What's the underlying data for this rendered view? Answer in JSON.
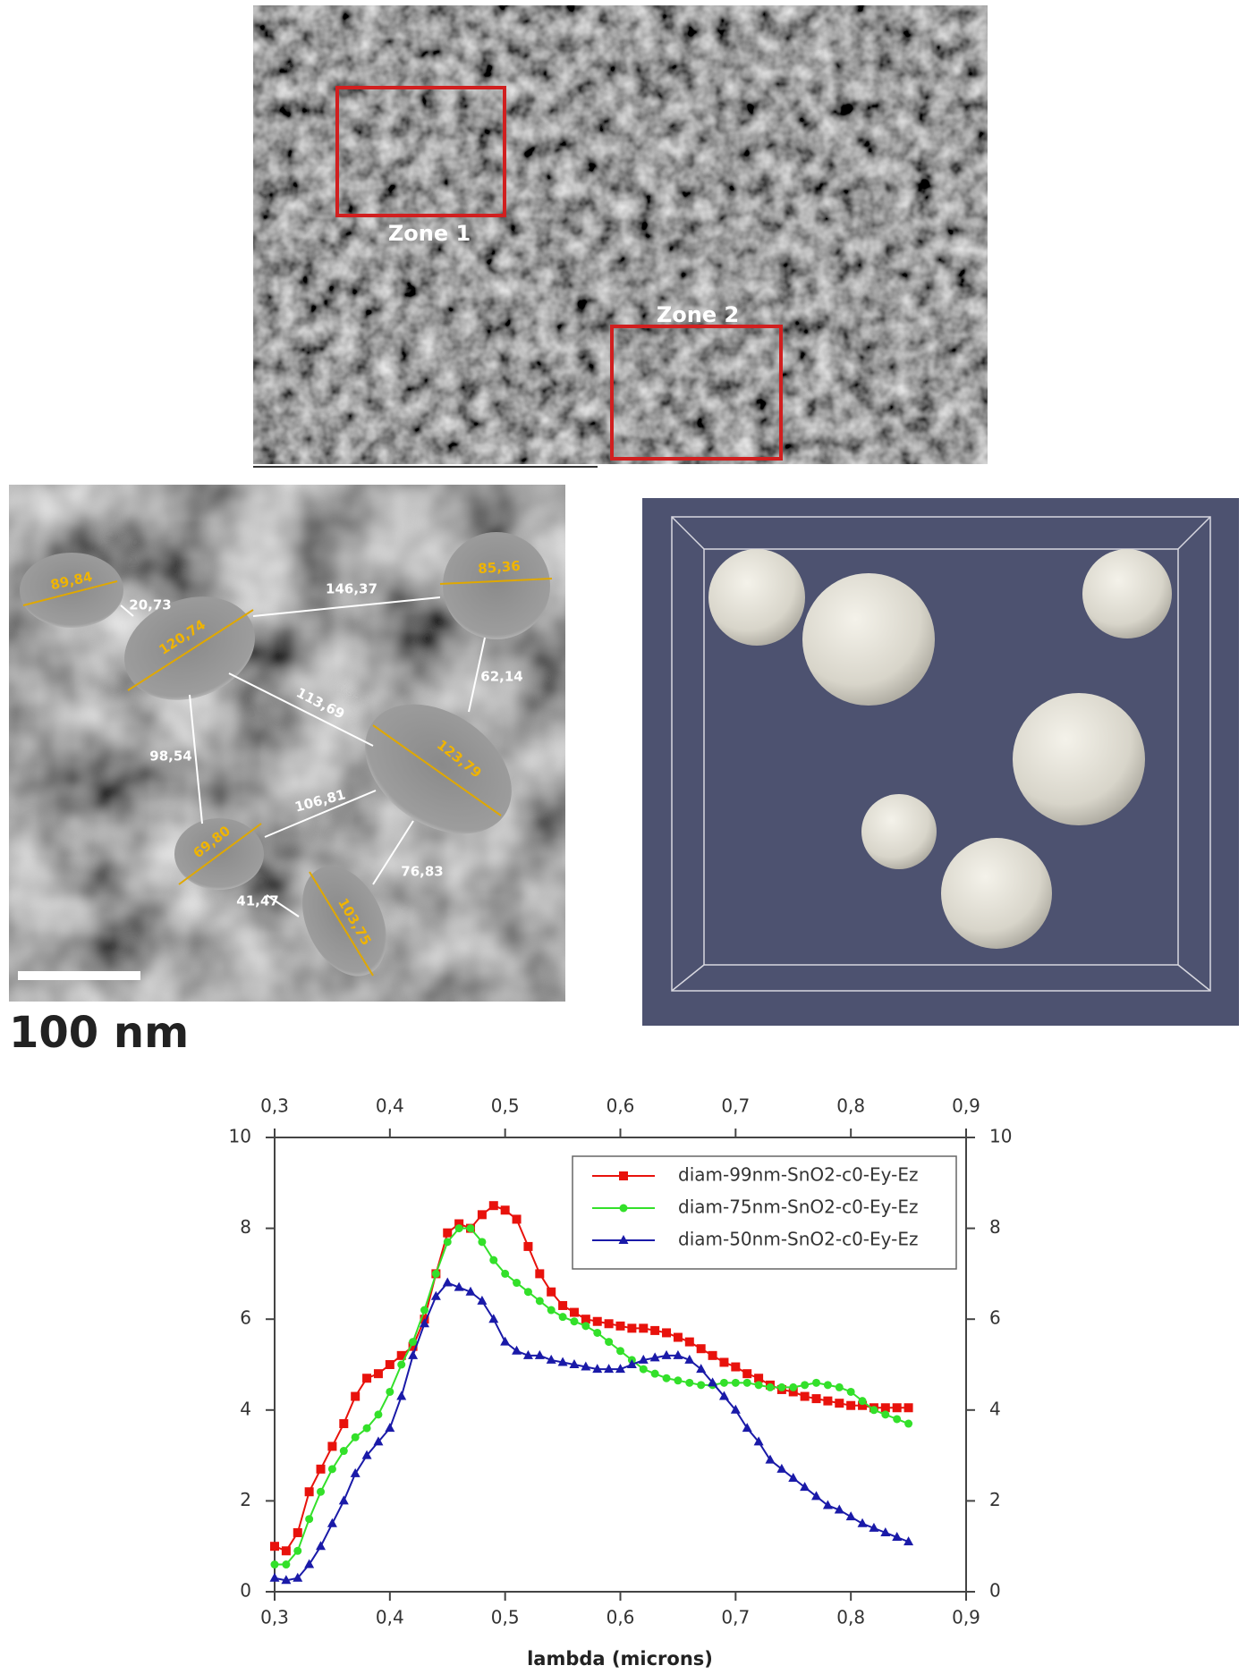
{
  "figure": {
    "zones": [
      "Zone 1",
      "Zone 2"
    ],
    "scale_bar": "100 nm",
    "diameters": [
      "89,84",
      "120,74",
      "85,36",
      "123,79",
      "69,80",
      "103,75"
    ],
    "distances": [
      "20,73",
      "146,37",
      "62,14",
      "113,69",
      "98,54",
      "106,81",
      "76,83",
      "41,47"
    ]
  },
  "chart_data": {
    "type": "line",
    "xlabel": "lambda (microns)",
    "x": [
      0.3,
      0.31,
      0.32,
      0.33,
      0.34,
      0.35,
      0.36,
      0.37,
      0.38,
      0.39,
      0.4,
      0.41,
      0.42,
      0.43,
      0.44,
      0.45,
      0.46,
      0.47,
      0.48,
      0.49,
      0.5,
      0.51,
      0.52,
      0.53,
      0.54,
      0.55,
      0.56,
      0.57,
      0.58,
      0.59,
      0.6,
      0.61,
      0.62,
      0.63,
      0.64,
      0.65,
      0.66,
      0.67,
      0.68,
      0.69,
      0.7,
      0.71,
      0.72,
      0.73,
      0.74,
      0.75,
      0.76,
      0.77,
      0.78,
      0.79,
      0.8,
      0.81,
      0.82,
      0.83,
      0.84,
      0.85
    ],
    "series": [
      {
        "name": "diam-99nm-SnO2-c0-Ey-Ez",
        "color": "#e8120c",
        "marker": "square",
        "values": [
          1.0,
          0.9,
          1.3,
          2.2,
          2.7,
          3.2,
          3.7,
          4.3,
          4.7,
          4.8,
          5.0,
          5.2,
          5.4,
          6.0,
          7.0,
          7.9,
          8.1,
          8.0,
          8.3,
          8.5,
          8.4,
          8.2,
          7.6,
          7.0,
          6.6,
          6.3,
          6.15,
          6.0,
          5.95,
          5.9,
          5.85,
          5.8,
          5.8,
          5.75,
          5.7,
          5.6,
          5.5,
          5.35,
          5.2,
          5.05,
          4.95,
          4.8,
          4.7,
          4.55,
          4.45,
          4.4,
          4.3,
          4.25,
          4.2,
          4.15,
          4.1,
          4.1,
          4.05,
          4.05,
          4.05,
          4.05
        ]
      },
      {
        "name": "diam-75nm-SnO2-c0-Ey-Ez",
        "color": "#33e02a",
        "marker": "circle",
        "values": [
          0.6,
          0.6,
          0.9,
          1.6,
          2.2,
          2.7,
          3.1,
          3.4,
          3.6,
          3.9,
          4.4,
          5.0,
          5.5,
          6.2,
          7.0,
          7.7,
          8.0,
          8.0,
          7.7,
          7.3,
          7.0,
          6.8,
          6.6,
          6.4,
          6.2,
          6.05,
          5.95,
          5.85,
          5.7,
          5.5,
          5.3,
          5.1,
          4.9,
          4.8,
          4.7,
          4.65,
          4.6,
          4.55,
          4.55,
          4.6,
          4.6,
          4.6,
          4.55,
          4.5,
          4.5,
          4.5,
          4.55,
          4.6,
          4.55,
          4.5,
          4.4,
          4.2,
          4.0,
          3.9,
          3.8,
          3.7
        ]
      },
      {
        "name": "diam-50nm-SnO2-c0-Ey-Ez",
        "color": "#1a1aa8",
        "marker": "triangle",
        "values": [
          0.3,
          0.25,
          0.3,
          0.6,
          1.0,
          1.5,
          2.0,
          2.6,
          3.0,
          3.3,
          3.6,
          4.3,
          5.2,
          5.9,
          6.5,
          6.8,
          6.7,
          6.6,
          6.4,
          6.0,
          5.5,
          5.3,
          5.2,
          5.2,
          5.1,
          5.05,
          5.0,
          4.95,
          4.9,
          4.9,
          4.9,
          5.0,
          5.1,
          5.15,
          5.2,
          5.2,
          5.1,
          4.9,
          4.6,
          4.3,
          4.0,
          3.6,
          3.3,
          2.9,
          2.7,
          2.5,
          2.3,
          2.1,
          1.9,
          1.8,
          1.65,
          1.5,
          1.4,
          1.3,
          1.2,
          1.1
        ]
      }
    ],
    "xlim": [
      0.3,
      0.9
    ],
    "xticks": [
      {
        "value": 0.3,
        "label": "0,3"
      },
      {
        "value": 0.4,
        "label": "0,4"
      },
      {
        "value": 0.5,
        "label": "0,5"
      },
      {
        "value": 0.6,
        "label": "0,6"
      },
      {
        "value": 0.7,
        "label": "0,7"
      },
      {
        "value": 0.8,
        "label": "0,8"
      },
      {
        "value": 0.9,
        "label": "0,9"
      }
    ],
    "x2ticks": [
      {
        "value": 0.3,
        "label": "0,3"
      },
      {
        "value": 0.4,
        "label": "0,4"
      },
      {
        "value": 0.5,
        "label": "0,5"
      },
      {
        "value": 0.6,
        "label": "0,6"
      },
      {
        "value": 0.7,
        "label": "0,7"
      },
      {
        "value": 0.8,
        "label": "0,8"
      },
      {
        "value": 0.9,
        "label": "0,9"
      }
    ],
    "ylim": [
      0,
      10
    ],
    "yticks": [
      0,
      2,
      4,
      6,
      8,
      10
    ],
    "y2lim": [
      0,
      10
    ],
    "y2ticks": [
      0,
      2,
      4,
      6,
      8,
      10
    ],
    "legend": "upper right"
  }
}
